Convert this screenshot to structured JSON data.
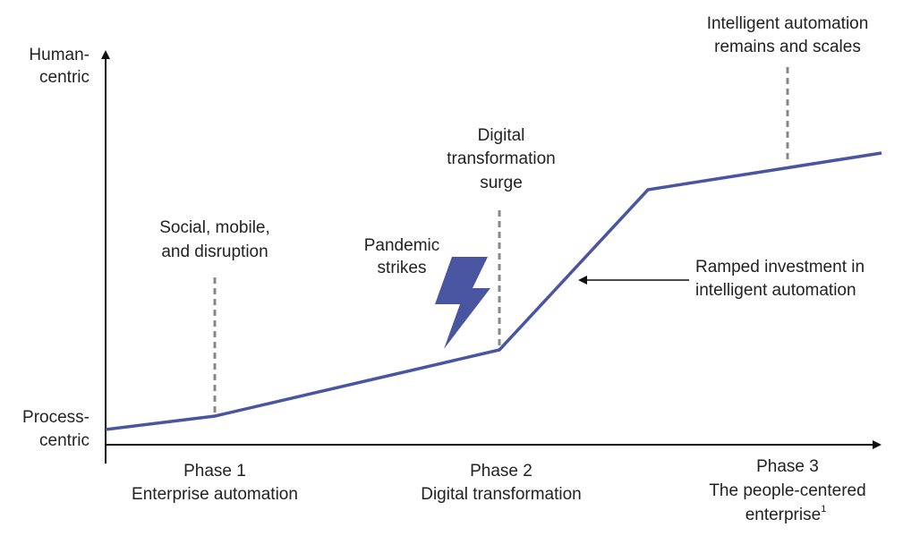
{
  "y_axis": {
    "top_label": [
      "Human-",
      "centric"
    ],
    "bottom_label": [
      "Process-",
      "centric"
    ]
  },
  "phases": [
    {
      "name": "Phase 1",
      "label": [
        "Enterprise automation"
      ]
    },
    {
      "name": "Phase 2",
      "label": [
        "Digital transformation"
      ]
    },
    {
      "name": "Phase 3",
      "label": [
        "The people-centered",
        "enterprise"
      ],
      "footnote": "1"
    }
  ],
  "annotations": [
    {
      "lines": [
        "Social, mobile,",
        "and disruption"
      ]
    },
    {
      "lines": [
        "Pandemic",
        "strikes"
      ]
    },
    {
      "lines": [
        "Digital",
        "transformation",
        "surge"
      ]
    },
    {
      "lines": [
        "Ramped investment in",
        "intelligent automation"
      ]
    },
    {
      "lines": [
        "Intelligent automation",
        "remains and scales"
      ]
    }
  ]
}
